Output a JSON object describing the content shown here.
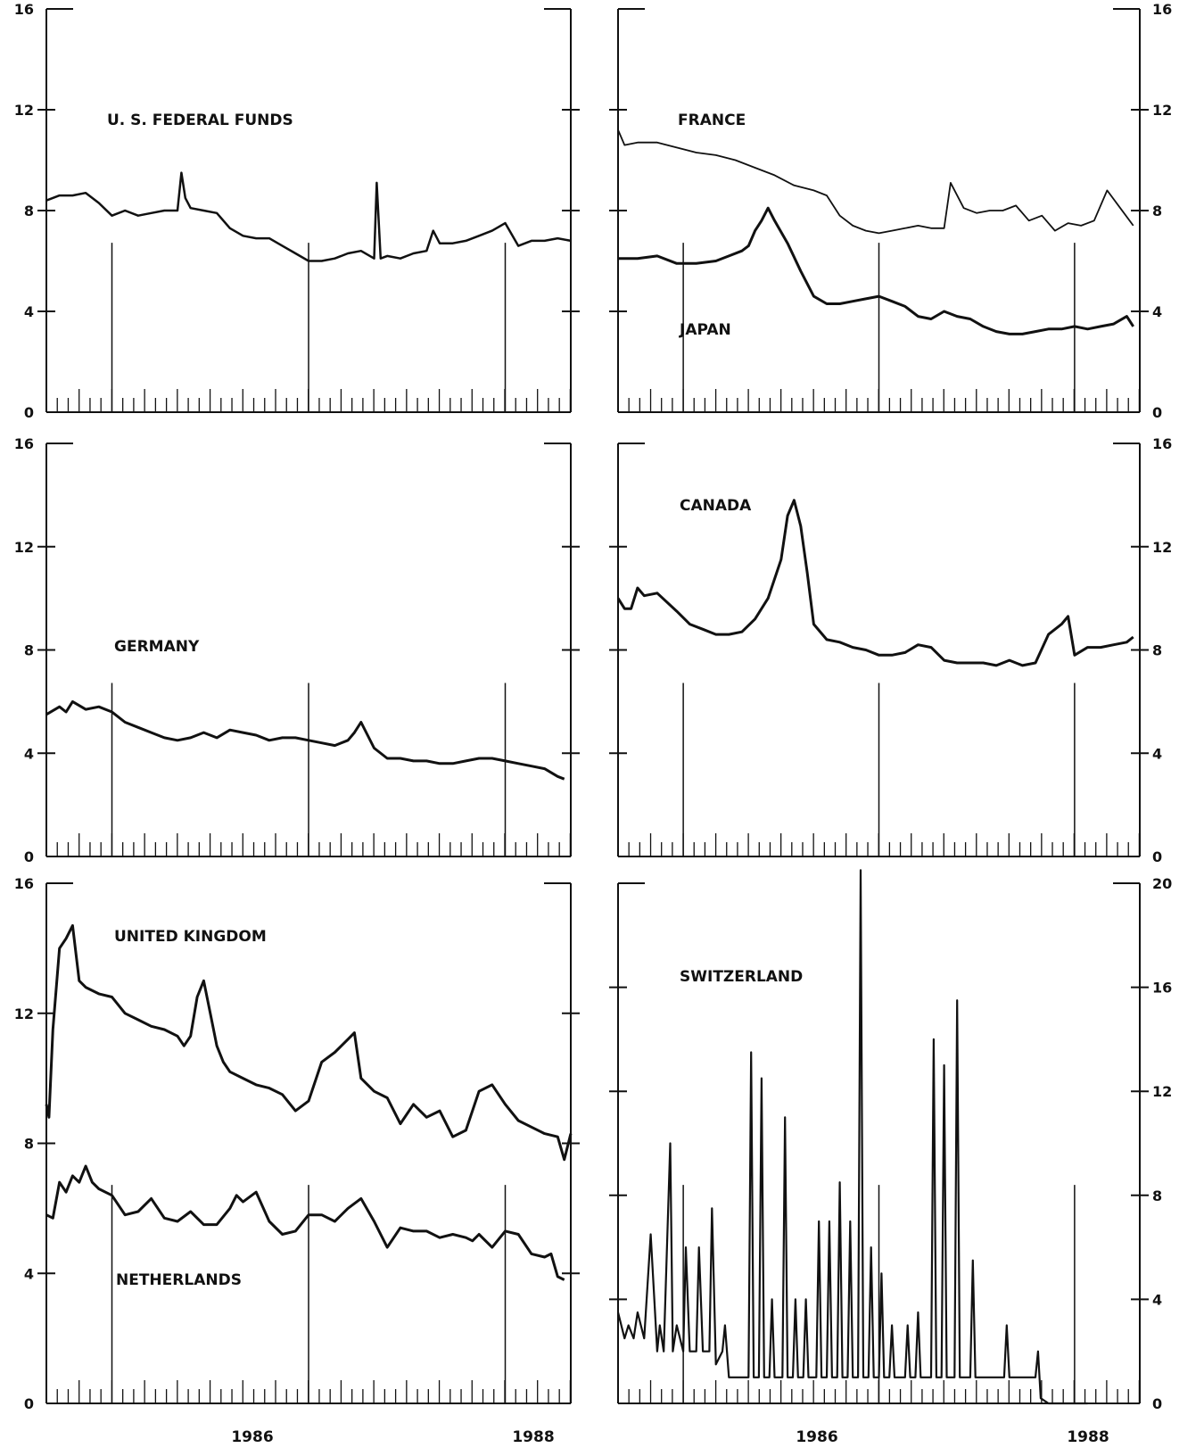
{
  "chart_data": [
    {
      "type": "line",
      "label": "U. S. FEDERAL FUNDS",
      "axis_side": "left",
      "ylim": [
        0,
        16
      ],
      "yticks": [
        "0",
        "4",
        "8",
        "12",
        "16"
      ],
      "xlim": [
        1984.0,
        1988.0
      ],
      "series": [
        {
          "name": "U. S. FEDERAL FUNDS",
          "weight": 2.5,
          "x": [
            1984.0,
            1984.1,
            1984.2,
            1984.3,
            1984.4,
            1984.5,
            1984.6,
            1984.7,
            1984.8,
            1984.9,
            1985.0,
            1985.03,
            1985.06,
            1985.1,
            1985.2,
            1985.3,
            1985.4,
            1985.5,
            1985.6,
            1985.7,
            1985.8,
            1985.9,
            1986.0,
            1986.1,
            1986.2,
            1986.3,
            1986.4,
            1986.5,
            1986.52,
            1986.55,
            1986.6,
            1986.7,
            1986.8,
            1986.9,
            1986.95,
            1987.0,
            1987.1,
            1987.2,
            1987.3,
            1987.4,
            1987.5,
            1987.6,
            1987.7,
            1987.8,
            1987.9,
            1988.0
          ],
          "y": [
            8.4,
            8.6,
            8.6,
            8.7,
            8.3,
            7.8,
            8.0,
            7.8,
            7.9,
            8.0,
            8.0,
            9.5,
            8.5,
            8.1,
            8.0,
            7.9,
            7.3,
            7.0,
            6.9,
            6.9,
            6.6,
            6.3,
            6.0,
            6.0,
            6.1,
            6.3,
            6.4,
            6.1,
            9.1,
            6.1,
            6.2,
            6.1,
            6.3,
            6.4,
            7.2,
            6.7,
            6.7,
            6.8,
            7.0,
            7.2,
            7.5,
            6.6,
            6.8,
            6.8,
            6.9,
            6.8
          ]
        }
      ]
    },
    {
      "type": "line",
      "label_primary": "FRANCE",
      "label_secondary": "JAPAN",
      "axis_side": "right",
      "ylim": [
        0,
        16
      ],
      "yticks": [
        "0",
        "4",
        "8",
        "12",
        "16"
      ],
      "xlim": [
        1984.0,
        1988.0
      ],
      "series": [
        {
          "name": "FRANCE",
          "weight": 1.8,
          "x": [
            1984.0,
            1984.05,
            1984.15,
            1984.3,
            1984.45,
            1984.6,
            1984.75,
            1984.9,
            1985.05,
            1985.2,
            1985.35,
            1985.5,
            1985.6,
            1985.7,
            1985.8,
            1985.9,
            1986.0,
            1986.1,
            1986.2,
            1986.3,
            1986.4,
            1986.5,
            1986.55,
            1986.65,
            1986.75,
            1986.85,
            1986.95,
            1987.05,
            1987.15,
            1987.25,
            1987.35,
            1987.45,
            1987.55,
            1987.65,
            1987.75,
            1987.85,
            1987.95
          ],
          "y": [
            11.2,
            10.6,
            10.7,
            10.7,
            10.5,
            10.3,
            10.2,
            10.0,
            9.7,
            9.4,
            9.0,
            8.8,
            8.6,
            7.8,
            7.4,
            7.2,
            7.1,
            7.2,
            7.3,
            7.4,
            7.3,
            7.3,
            9.1,
            8.1,
            7.9,
            8.0,
            8.0,
            8.2,
            7.6,
            7.8,
            7.2,
            7.5,
            7.4,
            7.6,
            8.8,
            8.1,
            7.4
          ]
        },
        {
          "name": "JAPAN",
          "weight": 3.0,
          "x": [
            1984.0,
            1984.15,
            1984.3,
            1984.45,
            1984.6,
            1984.75,
            1984.85,
            1984.95,
            1985.0,
            1985.05,
            1985.1,
            1985.15,
            1985.2,
            1985.3,
            1985.4,
            1985.5,
            1985.6,
            1985.7,
            1985.8,
            1985.9,
            1986.0,
            1986.1,
            1986.2,
            1986.3,
            1986.4,
            1986.5,
            1986.6,
            1986.7,
            1986.8,
            1986.9,
            1987.0,
            1987.1,
            1987.2,
            1987.3,
            1987.4,
            1987.5,
            1987.6,
            1987.7,
            1987.8,
            1987.9,
            1987.95
          ],
          "y": [
            6.1,
            6.1,
            6.2,
            5.9,
            5.9,
            6.0,
            6.2,
            6.4,
            6.6,
            7.2,
            7.6,
            8.1,
            7.6,
            6.7,
            5.6,
            4.6,
            4.3,
            4.3,
            4.4,
            4.5,
            4.6,
            4.4,
            4.2,
            3.8,
            3.7,
            4.0,
            3.8,
            3.7,
            3.4,
            3.2,
            3.1,
            3.1,
            3.2,
            3.3,
            3.3,
            3.4,
            3.3,
            3.4,
            3.5,
            3.8,
            3.4
          ]
        }
      ]
    },
    {
      "type": "line",
      "label": "GERMANY",
      "axis_side": "left",
      "ylim": [
        0,
        16
      ],
      "yticks": [
        "0",
        "4",
        "8",
        "12",
        "16"
      ],
      "xlim": [
        1984.0,
        1988.0
      ],
      "series": [
        {
          "name": "GERMANY",
          "weight": 3.0,
          "x": [
            1984.0,
            1984.1,
            1984.15,
            1984.2,
            1984.3,
            1984.4,
            1984.5,
            1984.6,
            1984.7,
            1984.8,
            1984.9,
            1985.0,
            1985.1,
            1985.2,
            1985.3,
            1985.4,
            1985.5,
            1985.6,
            1985.7,
            1985.8,
            1985.9,
            1986.0,
            1986.1,
            1986.2,
            1986.3,
            1986.35,
            1986.4,
            1986.5,
            1986.6,
            1986.7,
            1986.8,
            1986.9,
            1987.0,
            1987.1,
            1987.2,
            1987.3,
            1987.4,
            1987.5,
            1987.6,
            1987.7,
            1987.8,
            1987.9,
            1987.95
          ],
          "y": [
            5.5,
            5.8,
            5.6,
            6.0,
            5.7,
            5.8,
            5.6,
            5.2,
            5.0,
            4.8,
            4.6,
            4.5,
            4.6,
            4.8,
            4.6,
            4.9,
            4.8,
            4.7,
            4.5,
            4.6,
            4.6,
            4.5,
            4.4,
            4.3,
            4.5,
            4.8,
            5.2,
            4.2,
            3.8,
            3.8,
            3.7,
            3.7,
            3.6,
            3.6,
            3.7,
            3.8,
            3.8,
            3.7,
            3.6,
            3.5,
            3.4,
            3.1,
            3.0
          ]
        }
      ]
    },
    {
      "type": "line",
      "label": "CANADA",
      "axis_side": "right",
      "ylim": [
        0,
        16
      ],
      "yticks": [
        "0",
        "4",
        "8",
        "12",
        "16"
      ],
      "xlim": [
        1984.0,
        1988.0
      ],
      "series": [
        {
          "name": "CANADA",
          "weight": 3.0,
          "x": [
            1984.0,
            1984.05,
            1984.1,
            1984.15,
            1984.2,
            1984.3,
            1984.45,
            1984.55,
            1984.65,
            1984.75,
            1984.85,
            1984.95,
            1985.05,
            1985.15,
            1985.25,
            1985.3,
            1985.35,
            1985.4,
            1985.45,
            1985.5,
            1985.6,
            1985.7,
            1985.8,
            1985.9,
            1986.0,
            1986.1,
            1986.2,
            1986.3,
            1986.4,
            1986.5,
            1986.6,
            1986.7,
            1986.8,
            1986.9,
            1987.0,
            1987.1,
            1987.2,
            1987.3,
            1987.4,
            1987.45,
            1987.5,
            1987.6,
            1987.7,
            1987.8,
            1987.9,
            1987.95
          ],
          "y": [
            10.0,
            9.6,
            9.6,
            10.4,
            10.1,
            10.2,
            9.5,
            9.0,
            8.8,
            8.6,
            8.6,
            8.7,
            9.2,
            10.0,
            11.5,
            13.2,
            13.8,
            12.8,
            11.0,
            9.0,
            8.4,
            8.3,
            8.1,
            8.0,
            7.8,
            7.8,
            7.9,
            8.2,
            8.1,
            7.6,
            7.5,
            7.5,
            7.5,
            7.4,
            7.6,
            7.4,
            7.5,
            8.6,
            9.0,
            9.3,
            7.8,
            8.1,
            8.1,
            8.2,
            8.3,
            8.5
          ]
        }
      ]
    },
    {
      "type": "line",
      "label_primary": "UNITED KINGDOM",
      "label_secondary": "NETHERLANDS",
      "axis_side": "left",
      "ylim": [
        0,
        16
      ],
      "yticks": [
        "0",
        "4",
        "8",
        "12",
        "16"
      ],
      "xlim": [
        1984.0,
        1988.0
      ],
      "series": [
        {
          "name": "UNITED KINGDOM",
          "weight": 3.0,
          "x": [
            1984.0,
            1984.02,
            1984.05,
            1984.1,
            1984.15,
            1984.2,
            1984.25,
            1984.3,
            1984.4,
            1984.5,
            1984.6,
            1984.7,
            1984.8,
            1984.9,
            1985.0,
            1985.05,
            1985.1,
            1985.15,
            1985.2,
            1985.25,
            1985.3,
            1985.35,
            1985.4,
            1985.5,
            1985.6,
            1985.7,
            1985.8,
            1985.9,
            1986.0,
            1986.1,
            1986.2,
            1986.25,
            1986.3,
            1986.35,
            1986.4,
            1986.5,
            1986.6,
            1986.7,
            1986.8,
            1986.9,
            1987.0,
            1987.1,
            1987.2,
            1987.3,
            1987.4,
            1987.5,
            1987.6,
            1987.7,
            1987.8,
            1987.9,
            1987.95,
            1988.0
          ],
          "y": [
            9.2,
            8.8,
            11.5,
            14.0,
            14.3,
            14.7,
            13.0,
            12.8,
            12.6,
            12.5,
            12.0,
            11.8,
            11.6,
            11.5,
            11.3,
            11.0,
            11.3,
            12.5,
            13.0,
            12.0,
            11.0,
            10.5,
            10.2,
            10.0,
            9.8,
            9.7,
            9.5,
            9.0,
            9.3,
            10.5,
            10.8,
            11.0,
            11.2,
            11.4,
            10.0,
            9.6,
            9.4,
            8.6,
            9.2,
            8.8,
            9.0,
            8.2,
            8.4,
            9.6,
            9.8,
            9.2,
            8.7,
            8.5,
            8.3,
            8.2,
            7.5,
            8.3
          ]
        },
        {
          "name": "NETHERLANDS",
          "weight": 3.0,
          "x": [
            1984.0,
            1984.05,
            1984.1,
            1984.15,
            1984.2,
            1984.25,
            1984.3,
            1984.35,
            1984.4,
            1984.5,
            1984.6,
            1984.7,
            1984.8,
            1984.9,
            1985.0,
            1985.1,
            1985.2,
            1985.3,
            1985.4,
            1985.45,
            1985.5,
            1985.6,
            1985.7,
            1985.8,
            1985.9,
            1986.0,
            1986.1,
            1986.2,
            1986.3,
            1986.4,
            1986.5,
            1986.6,
            1986.7,
            1986.8,
            1986.9,
            1987.0,
            1987.1,
            1987.2,
            1987.25,
            1987.3,
            1987.4,
            1987.5,
            1987.6,
            1987.7,
            1987.8,
            1987.85,
            1987.9,
            1987.95
          ],
          "y": [
            5.8,
            5.7,
            6.8,
            6.5,
            7.0,
            6.8,
            7.3,
            6.8,
            6.6,
            6.4,
            5.8,
            5.9,
            6.3,
            5.7,
            5.6,
            5.9,
            5.5,
            5.5,
            6.0,
            6.4,
            6.2,
            6.5,
            5.6,
            5.2,
            5.3,
            5.8,
            5.8,
            5.6,
            6.0,
            6.3,
            5.6,
            4.8,
            5.4,
            5.3,
            5.3,
            5.1,
            5.2,
            5.1,
            5.0,
            5.2,
            4.8,
            5.3,
            5.2,
            4.6,
            4.5,
            4.6,
            3.9,
            3.8
          ]
        }
      ]
    },
    {
      "type": "line",
      "label": "SWITZERLAND",
      "axis_side": "right",
      "ylim": [
        0,
        20
      ],
      "yticks": [
        "0",
        "4",
        "8",
        "12",
        "16",
        "20"
      ],
      "xlim": [
        1984.0,
        1988.0
      ],
      "series": [
        {
          "name": "SWITZERLAND",
          "weight": 2.2,
          "x": [
            1984.0,
            1984.05,
            1984.08,
            1984.12,
            1984.15,
            1984.2,
            1984.25,
            1984.3,
            1984.32,
            1984.35,
            1984.4,
            1984.42,
            1984.45,
            1984.5,
            1984.52,
            1984.55,
            1984.6,
            1984.62,
            1984.65,
            1984.7,
            1984.72,
            1984.75,
            1984.8,
            1984.82,
            1984.85,
            1984.9,
            1984.95,
            1985.0,
            1985.02,
            1985.04,
            1985.08,
            1985.1,
            1985.12,
            1985.16,
            1985.18,
            1985.2,
            1985.26,
            1985.28,
            1985.3,
            1985.34,
            1985.36,
            1985.38,
            1985.42,
            1985.44,
            1985.46,
            1985.52,
            1985.54,
            1985.56,
            1985.6,
            1985.62,
            1985.64,
            1985.68,
            1985.7,
            1985.72,
            1985.76,
            1985.78,
            1985.8,
            1985.84,
            1985.86,
            1985.88,
            1985.92,
            1985.94,
            1985.96,
            1986.0,
            1986.02,
            1986.04,
            1986.08,
            1986.1,
            1986.12,
            1986.2,
            1986.22,
            1986.24,
            1986.28,
            1986.3,
            1986.32,
            1986.4,
            1986.42,
            1986.44,
            1986.48,
            1986.5,
            1986.52,
            1986.58,
            1986.6,
            1986.62,
            1986.7,
            1986.72,
            1986.74,
            1986.96,
            1986.98,
            1987.0,
            1987.2,
            1987.22,
            1987.24,
            1987.3,
            1987.32,
            1987.34,
            1987.38,
            1987.4,
            1987.42,
            1987.48,
            1987.5,
            1987.52,
            1987.55,
            1987.6
          ],
          "y": [
            3.5,
            2.5,
            3.0,
            2.5,
            3.5,
            2.5,
            6.5,
            2.0,
            3.0,
            2.0,
            10.0,
            2.0,
            3.0,
            2.0,
            6.0,
            2.0,
            2.0,
            6.0,
            2.0,
            2.0,
            7.5,
            1.5,
            2.0,
            3.0,
            1.0,
            1.0,
            1.0,
            1.0,
            13.5,
            1.0,
            1.0,
            12.5,
            1.0,
            1.0,
            4.0,
            1.0,
            1.0,
            11.0,
            1.0,
            1.0,
            4.0,
            1.0,
            1.0,
            4.0,
            1.0,
            1.0,
            7.0,
            1.0,
            1.0,
            7.0,
            1.0,
            1.0,
            8.5,
            1.0,
            1.0,
            7.0,
            1.0,
            1.0,
            20.5,
            1.0,
            1.0,
            6.0,
            1.0,
            1.0,
            5.0,
            1.0,
            1.0,
            3.0,
            1.0,
            1.0,
            3.0,
            1.0,
            1.0,
            3.5,
            1.0,
            1.0,
            14.0,
            1.0,
            1.0,
            13.0,
            1.0,
            1.0,
            15.5,
            1.0,
            1.0,
            5.5,
            1.0,
            1.0,
            3.0,
            1.0,
            1.0,
            2.0,
            0.2,
            0.0,
            0.0,
            0.0,
            0.0,
            0.0,
            0.0,
            0.0,
            0.0,
            0.0,
            0.0,
            0.0
          ]
        }
      ]
    }
  ],
  "x_axis_labels": [
    "1986",
    "1988"
  ]
}
